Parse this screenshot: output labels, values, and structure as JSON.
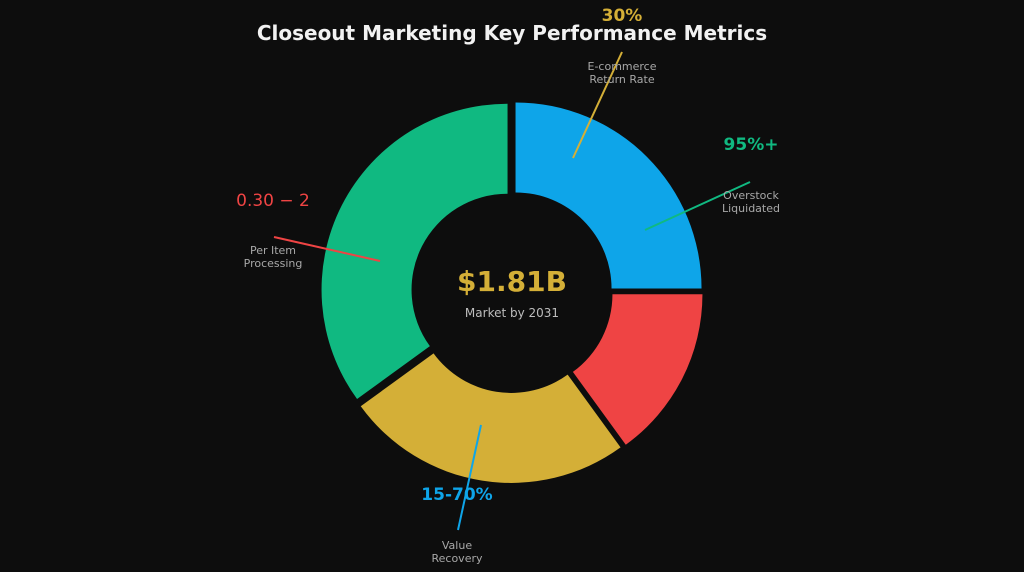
{
  "chart_data": {
    "type": "pie",
    "variant": "donut",
    "title": "Closeout Marketing Key Performance Metrics",
    "center": {
      "value": "$1.81B",
      "label": "Market by 2031",
      "color": "#d4af37"
    },
    "slices": [
      {
        "key": "blue",
        "value": 25,
        "color": "#0ea5e9"
      },
      {
        "key": "red",
        "value": 15,
        "color": "#ef4444"
      },
      {
        "key": "gold",
        "value": 25,
        "color": "#d4af37"
      },
      {
        "key": "green",
        "value": 35,
        "color": "#10b981"
      }
    ],
    "annotations": [
      {
        "key": "ecommerce",
        "value": "30%",
        "label_lines": [
          "E-commerce",
          "Return Rate"
        ],
        "color": "#d4af37"
      },
      {
        "key": "overstock",
        "value": "95%+",
        "label_lines": [
          "Overstock",
          "Liquidated"
        ],
        "color": "#10b981"
      },
      {
        "key": "per-item",
        "value": "0.30 − 2",
        "label_lines": [
          "Per Item",
          "Processing"
        ],
        "color": "#ef4444"
      },
      {
        "key": "recovery",
        "value": "15-70%",
        "label_lines": [
          "Value",
          "Recovery"
        ],
        "color": "#0ea5e9"
      }
    ],
    "legend": "none",
    "grid": false
  }
}
